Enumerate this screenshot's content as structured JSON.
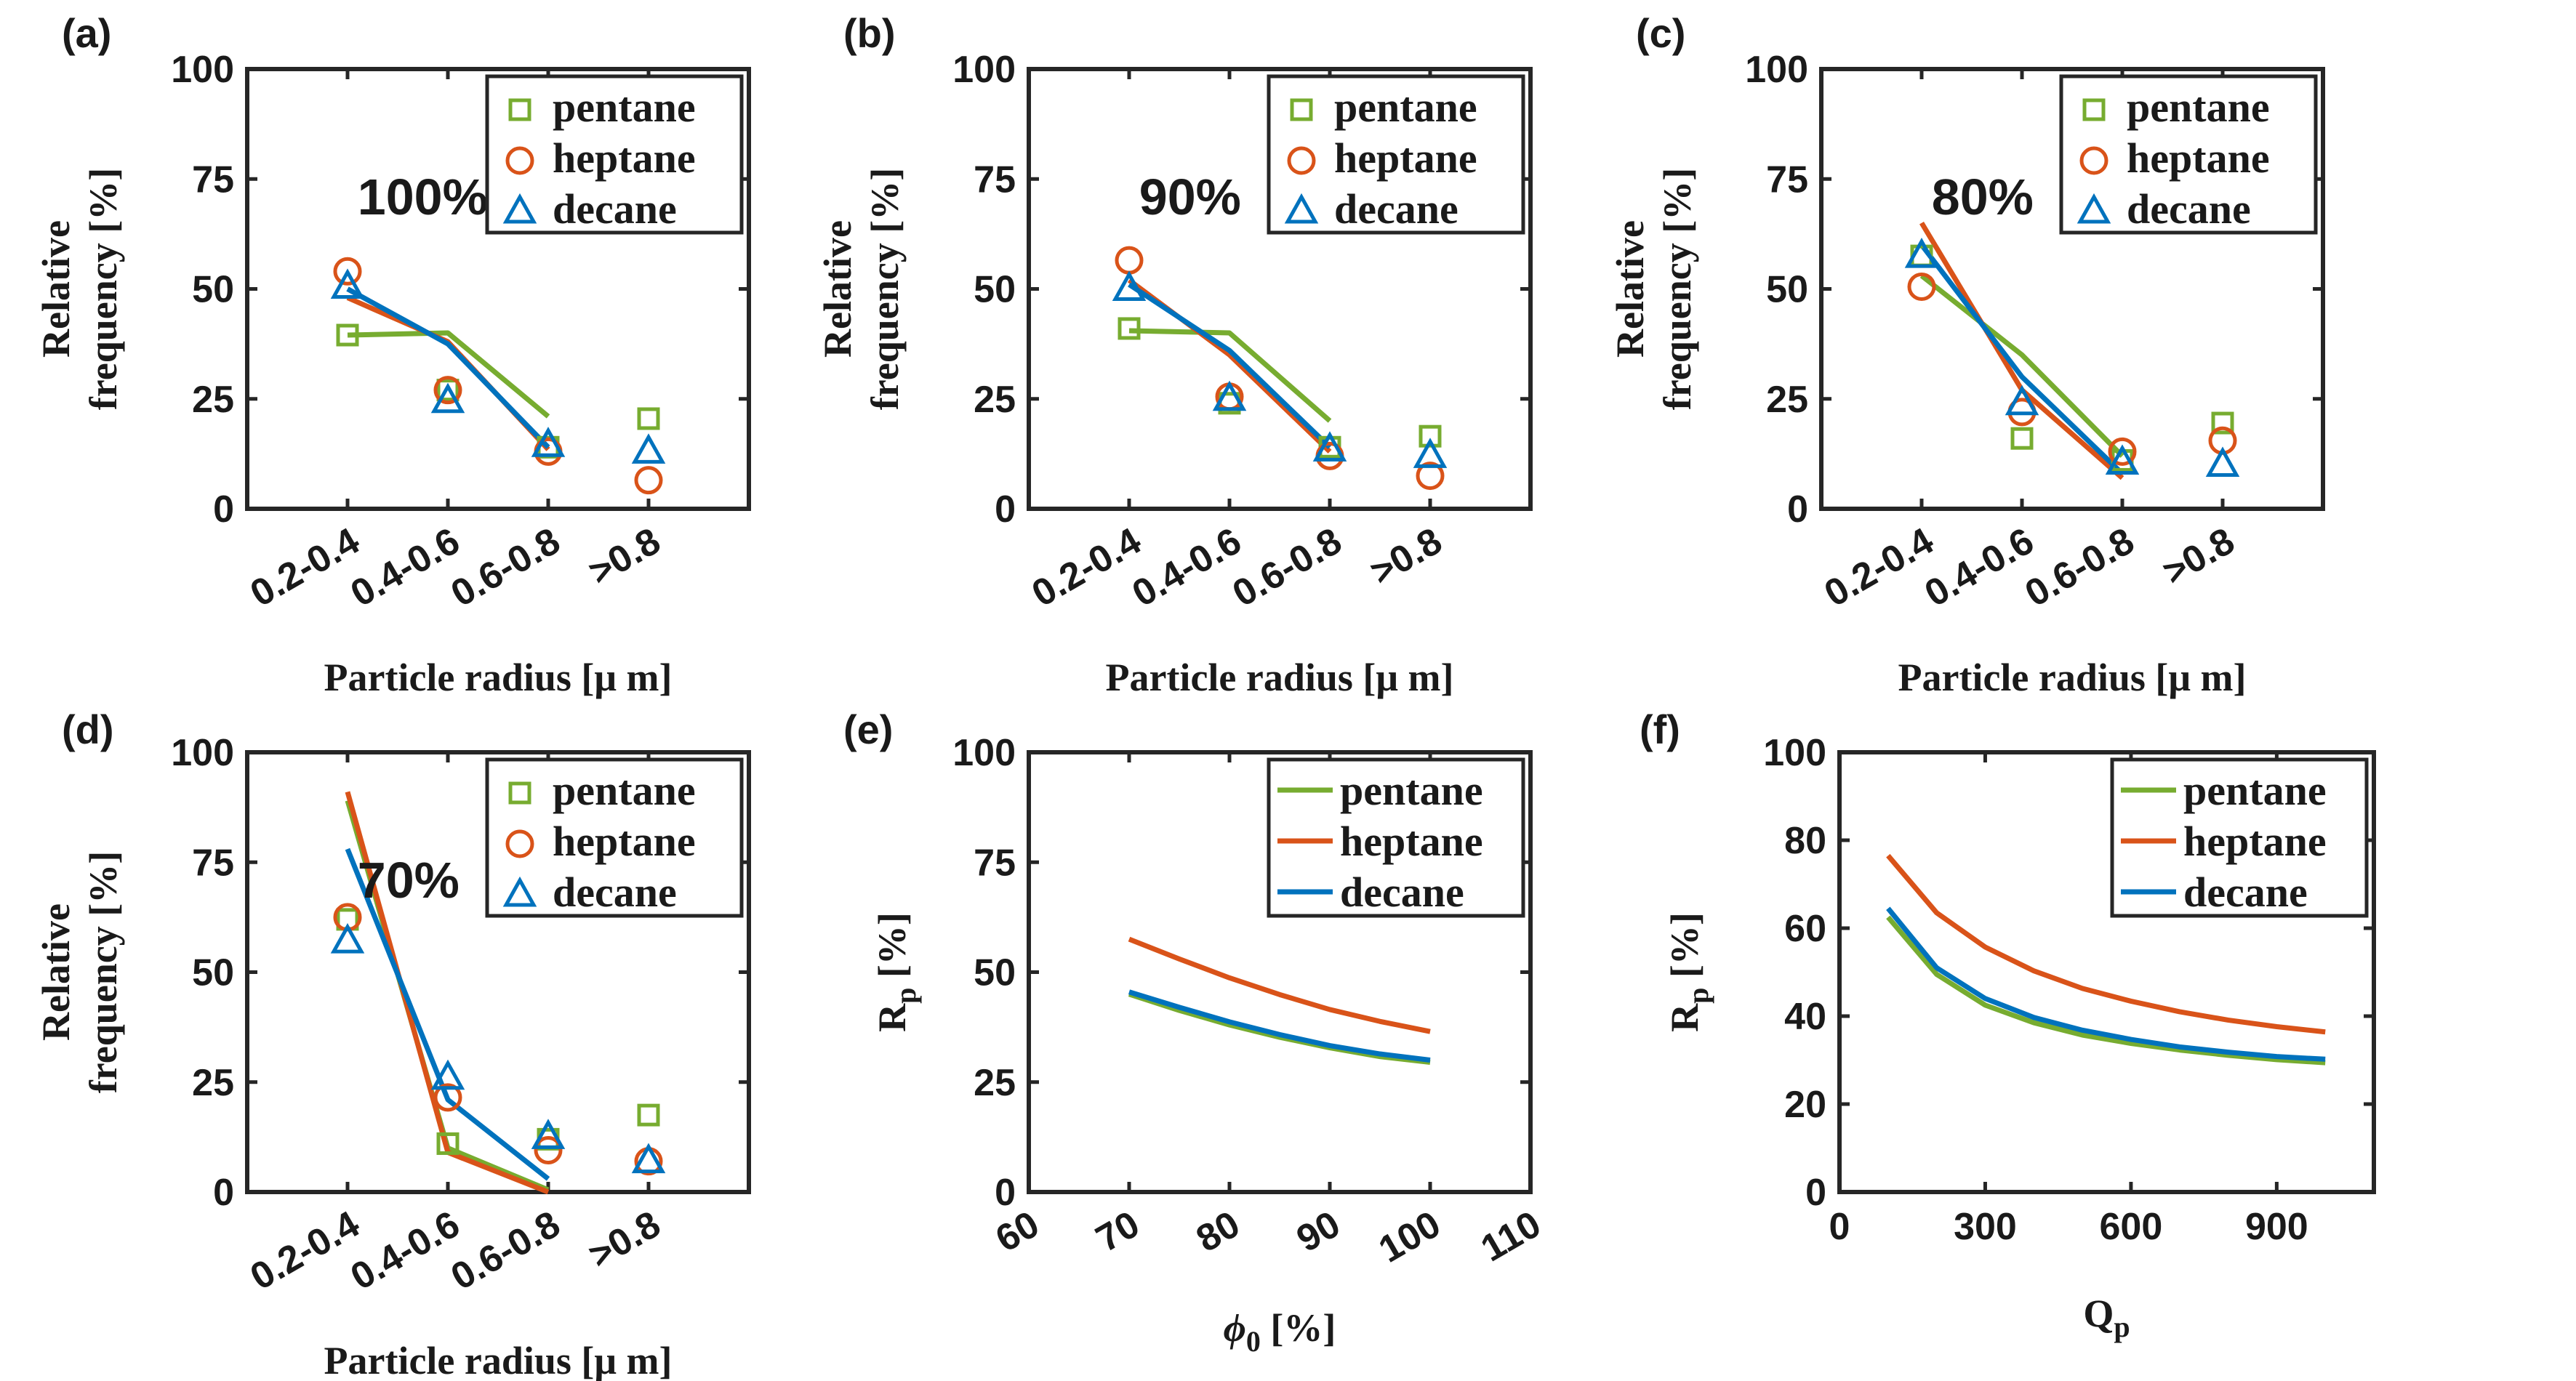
{
  "colors": {
    "pentane": "#77AC30",
    "heptane": "#D95319",
    "decane": "#0072BD",
    "axis": "#262626"
  },
  "chart_data": [
    {
      "panel": "(a)",
      "type": "scatter+line",
      "annotation": "100%",
      "categories": [
        "0.2-0.4",
        "0.4-0.6",
        "0.6-0.8",
        ">0.8"
      ],
      "xlabel": "Particle radius [μ m]",
      "ylabel_lines": [
        "Relative",
        "frequency [%]"
      ],
      "ylim": [
        0,
        100
      ],
      "yticks": [
        "0",
        "25",
        "50",
        "75",
        "100"
      ],
      "legend": [
        "pentane",
        "heptane",
        "decane"
      ],
      "legend_position": "top-right",
      "series": [
        {
          "name": "pentane",
          "marker": "square",
          "points": [
            39.5,
            27,
            14,
            20.5
          ],
          "fit": [
            39.5,
            40,
            21
          ]
        },
        {
          "name": "heptane",
          "marker": "circle",
          "points": [
            54,
            27,
            13,
            6.5
          ],
          "fit": [
            48,
            38,
            13.5
          ]
        },
        {
          "name": "decane",
          "marker": "triangle",
          "points": [
            50.5,
            24.5,
            14.5,
            13
          ],
          "fit": [
            50,
            37.5,
            14
          ]
        }
      ]
    },
    {
      "panel": "(b)",
      "type": "scatter+line",
      "annotation": "90%",
      "categories": [
        "0.2-0.4",
        "0.4-0.6",
        "0.6-0.8",
        ">0.8"
      ],
      "xlabel": "Particle radius [μ m]",
      "ylabel_lines": [
        "Relative",
        "frequency [%]"
      ],
      "ylim": [
        0,
        100
      ],
      "yticks": [
        "0",
        "25",
        "50",
        "75",
        "100"
      ],
      "legend": [
        "pentane",
        "heptane",
        "decane"
      ],
      "legend_position": "top-right",
      "series": [
        {
          "name": "pentane",
          "marker": "square",
          "points": [
            41,
            24,
            14,
            16.5
          ],
          "fit": [
            40.5,
            40,
            20
          ]
        },
        {
          "name": "heptane",
          "marker": "circle",
          "points": [
            56.5,
            25.5,
            12,
            7.5
          ],
          "fit": [
            52,
            35,
            13
          ]
        },
        {
          "name": "decane",
          "marker": "triangle",
          "points": [
            50,
            25,
            13.5,
            12
          ],
          "fit": [
            51,
            36,
            14
          ]
        }
      ]
    },
    {
      "panel": "(c)",
      "type": "scatter+line",
      "annotation": "80%",
      "categories": [
        "0.2-0.4",
        "0.4-0.6",
        "0.6-0.8",
        ">0.8"
      ],
      "xlabel": "Particle radius [μ m]",
      "ylabel_lines": [
        "Relative",
        "frequency [%]"
      ],
      "ylim": [
        0,
        100
      ],
      "yticks": [
        "0",
        "25",
        "50",
        "75",
        "100"
      ],
      "legend": [
        "pentane",
        "heptane",
        "decane"
      ],
      "legend_position": "top-right",
      "series": [
        {
          "name": "pentane",
          "marker": "square",
          "points": [
            57.5,
            16,
            11,
            19.5
          ],
          "fit": [
            53,
            35,
            12
          ]
        },
        {
          "name": "heptane",
          "marker": "circle",
          "points": [
            50.5,
            22,
            13,
            15.5
          ],
          "fit": [
            65,
            27,
            7
          ]
        },
        {
          "name": "decane",
          "marker": "triangle",
          "points": [
            57.5,
            24,
            10.5,
            10
          ],
          "fit": [
            60,
            30,
            8
          ]
        }
      ]
    },
    {
      "panel": "(d)",
      "type": "scatter+line",
      "annotation": "70%",
      "categories": [
        "0.2-0.4",
        "0.4-0.6",
        "0.6-0.8",
        ">0.8"
      ],
      "xlabel": "Particle radius [μ m]",
      "ylabel_lines": [
        "Relative",
        "frequency [%]"
      ],
      "ylim": [
        0,
        100
      ],
      "yticks": [
        "0",
        "25",
        "50",
        "75",
        "100"
      ],
      "legend": [
        "pentane",
        "heptane",
        "decane"
      ],
      "legend_position": "top-right",
      "series": [
        {
          "name": "pentane",
          "marker": "square",
          "points": [
            62,
            11,
            12,
            17.5
          ],
          "fit": [
            89,
            10,
            0.5
          ]
        },
        {
          "name": "heptane",
          "marker": "circle",
          "points": [
            62.5,
            21.5,
            9.5,
            7
          ],
          "fit": [
            91,
            9,
            0
          ]
        },
        {
          "name": "decane",
          "marker": "triangle",
          "points": [
            57,
            26,
            12.5,
            7
          ],
          "fit": [
            78,
            21,
            3
          ]
        }
      ]
    },
    {
      "panel": "(e)",
      "type": "line",
      "xlabel": "ϕ",
      "xlabel_sub": "0",
      "xlabel_unit": " [%]",
      "ylabel": "R",
      "ylabel_sub": "p",
      "ylabel_unit": " [%]",
      "xlim": [
        60,
        110
      ],
      "xticks": [
        "60",
        "70",
        "80",
        "90",
        "100",
        "110"
      ],
      "ylim": [
        0,
        100
      ],
      "yticks": [
        "0",
        "25",
        "50",
        "75",
        "100"
      ],
      "legend": [
        "pentane",
        "heptane",
        "decane"
      ],
      "legend_position": "top-right",
      "x": [
        70,
        75,
        80,
        85,
        90,
        95,
        100
      ],
      "series": [
        {
          "name": "pentane",
          "values": [
            45,
            41.3,
            38,
            35.2,
            32.8,
            30.8,
            29.5
          ]
        },
        {
          "name": "heptane",
          "values": [
            57.5,
            53,
            48.7,
            44.9,
            41.5,
            38.8,
            36.5
          ]
        },
        {
          "name": "decane",
          "values": [
            45.5,
            42,
            38.7,
            35.8,
            33.3,
            31.4,
            30
          ]
        }
      ]
    },
    {
      "panel": "(f)",
      "type": "line",
      "xlabel": "Q",
      "xlabel_sub": "p",
      "ylabel": "R",
      "ylabel_sub": "p",
      "ylabel_unit": " [%]",
      "xlim": [
        0,
        1100
      ],
      "xticks": [
        "0",
        "300",
        "600",
        "900"
      ],
      "ylim": [
        0,
        100
      ],
      "yticks": [
        "0",
        "20",
        "40",
        "60",
        "80",
        "100"
      ],
      "legend": [
        "pentane",
        "heptane",
        "decane"
      ],
      "legend_position": "top-right",
      "x": [
        100,
        200,
        300,
        400,
        500,
        600,
        700,
        800,
        900,
        1000
      ],
      "series": [
        {
          "name": "pentane",
          "values": [
            62.5,
            49.5,
            42.5,
            38.5,
            35.7,
            33.8,
            32.3,
            31.1,
            30.1,
            29.4
          ]
        },
        {
          "name": "heptane",
          "values": [
            76.5,
            63.5,
            55.7,
            50.3,
            46.3,
            43.4,
            41,
            39.1,
            37.6,
            36.4
          ]
        },
        {
          "name": "decane",
          "values": [
            64.5,
            51,
            44,
            39.7,
            36.8,
            34.7,
            33,
            31.8,
            30.8,
            30.2
          ]
        }
      ]
    }
  ]
}
